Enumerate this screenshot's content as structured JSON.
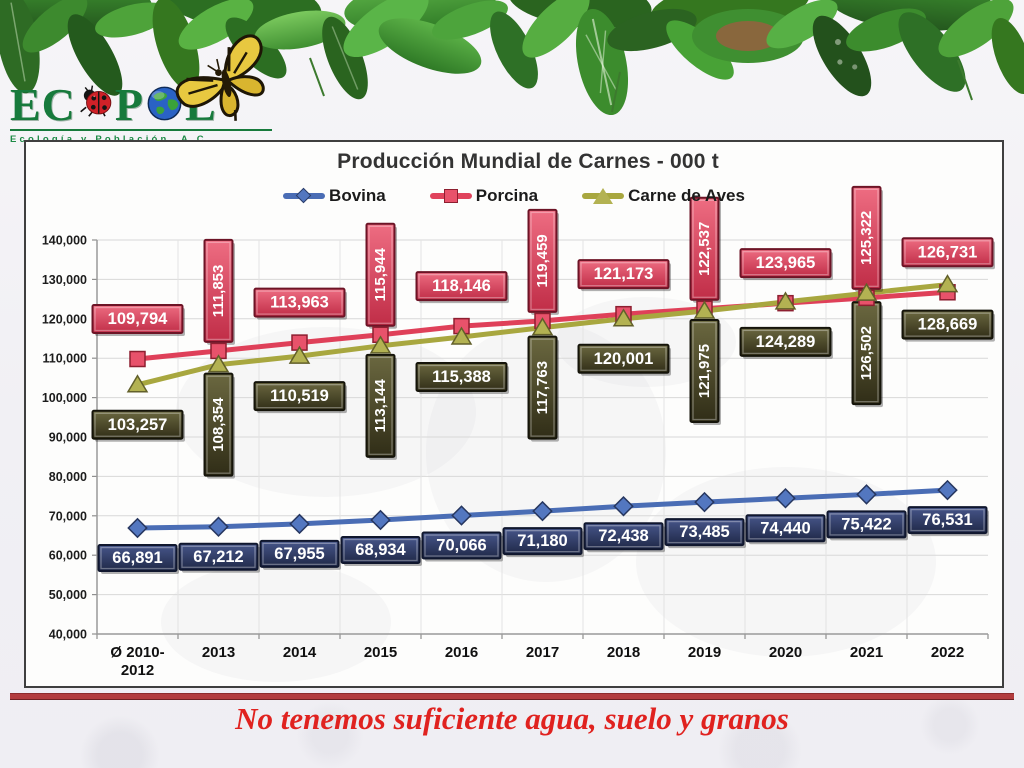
{
  "logo": {
    "part1": "EC",
    "part2": "P",
    "part3": "L",
    "subtitle": "Ecología y Población, A.C."
  },
  "caption": "No tenemos suficiente agua, suelo y granos",
  "colors": {
    "logo_green": "#177a3c",
    "divider_red": "#b23c3e",
    "caption_red": "#e0221f",
    "bovina_blue": "#4a6db5",
    "porcina_red": "#e0435c",
    "aves_olive": "#a8a73f"
  },
  "chart_data": {
    "type": "line",
    "title": "Producción Mundial de Carnes - 000 t",
    "categories": [
      "Ø 2010-\n2012",
      "2013",
      "2014",
      "2015",
      "2016",
      "2017",
      "2018",
      "2019",
      "2020",
      "2021",
      "2022"
    ],
    "ylim": [
      40000,
      140000
    ],
    "ytick_step": 10000,
    "yticks": [
      "40,000",
      "50,000",
      "60,000",
      "70,000",
      "80,000",
      "90,000",
      "100,000",
      "110,000",
      "120,000",
      "130,000",
      "140,000"
    ],
    "grid": true,
    "legend_position": "top",
    "series": [
      {
        "name": "Bovina",
        "marker": "diamond",
        "color": "#4a6db5",
        "marker_fill": "#5377c0",
        "marker_stroke": "#26365f",
        "label_top": "#47568a",
        "label_bottom": "#1f2847",
        "label_border": "#10172e",
        "label_pattern": "below",
        "values": [
          66891,
          67212,
          67955,
          68934,
          70066,
          71180,
          72438,
          73485,
          74440,
          75422,
          76531
        ]
      },
      {
        "name": "Porcina",
        "marker": "square",
        "color": "#df4059",
        "marker_fill": "#e8526b",
        "marker_stroke": "#8d1f30",
        "label_top": "#ee6d82",
        "label_bottom": "#c02d47",
        "label_border": "#6d1426",
        "label_pattern": "above-alt",
        "values": [
          109794,
          111853,
          113963,
          115944,
          118146,
          119459,
          121173,
          122537,
          123965,
          125322,
          126731
        ]
      },
      {
        "name": "Carne de Aves",
        "marker": "triangle",
        "color": "#a8a73f",
        "marker_fill": "#b3b252",
        "marker_stroke": "#62602a",
        "label_top": "#6b6840",
        "label_bottom": "#302d17",
        "label_border": "#15140a",
        "label_pattern": "below-alt",
        "values": [
          103257,
          108354,
          110519,
          113144,
          115388,
          117763,
          120001,
          121975,
          124289,
          126502,
          128669
        ]
      }
    ]
  }
}
